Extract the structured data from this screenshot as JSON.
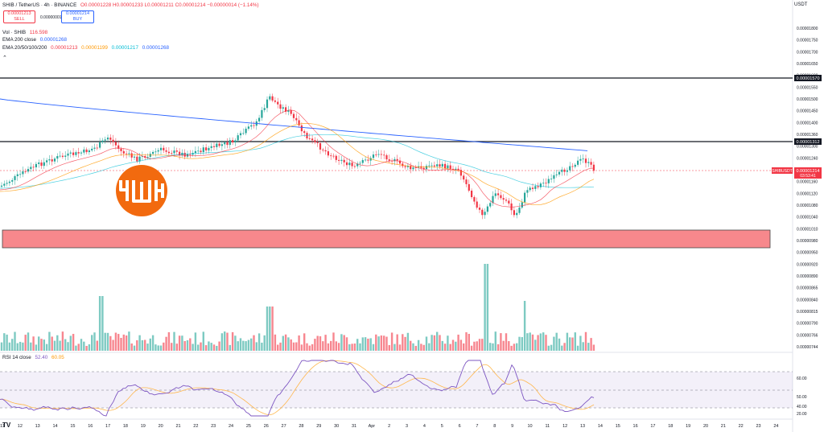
{
  "header": {
    "symbol": "SHIB / TetherUS · 4h · BINANCE",
    "ohlc": "O0.00001228 H0.00001233 L0.00001211 C0.00001214 −0.00000014 (−1.14%)",
    "sell_price": "0.00001213",
    "sell_label": "SELL",
    "spread": "0.00000001",
    "buy_price": "0.00001214",
    "buy_label": "BUY",
    "currency": "USDT"
  },
  "indicators": {
    "vol": {
      "label": "Vol · SHIB",
      "value": "116.598"
    },
    "ema200": {
      "label": "EMA 200 close",
      "value": "0.00001268"
    },
    "ema_multi": {
      "label": "EMA 20/50/100/200",
      "v20": "0.00001213",
      "v50": "0.00001199",
      "v100": "0.00001217",
      "v200": "0.00001268"
    },
    "rsi": {
      "label": "RSI 14 close",
      "value": "52.40",
      "ma": "60.05"
    }
  },
  "price_axis": {
    "ticks": [
      "0.00001800",
      "0.00001750",
      "0.00001700",
      "0.00001650",
      "0.00001600",
      "0.00001550",
      "0.00001500",
      "0.00001450",
      "0.00001400",
      "0.00001360",
      "0.00001300",
      "0.00001240",
      "0.00001200",
      "0.00001160",
      "0.00001120",
      "0.00001080",
      "0.00001040",
      "0.00001010",
      "0.00000980",
      "0.00000950",
      "0.00000920",
      "0.00000890",
      "0.00000865",
      "0.00000840",
      "0.00000815",
      "0.00000790",
      "0.00000766",
      "0.00000744"
    ],
    "level_upper": "0.00001570",
    "level_lower": "0.00001312",
    "current_ticker": "SHIBUSDT",
    "current_price": "0.00001214",
    "countdown": "03:53:41"
  },
  "rsi_axis": {
    "ticks": [
      "60.00",
      "50.00",
      "40.00",
      "20.00"
    ]
  },
  "time_axis": [
    "11",
    "12",
    "13",
    "14",
    "15",
    "16",
    "17",
    "18",
    "19",
    "20",
    "21",
    "22",
    "23",
    "24",
    "25",
    "26",
    "27",
    "28",
    "29",
    "30",
    "31",
    "Apr",
    "2",
    "3",
    "4",
    "5",
    "6",
    "7",
    "8",
    "9",
    "10",
    "11",
    "12",
    "13",
    "14",
    "15",
    "16",
    "17",
    "18",
    "19",
    "20",
    "21",
    "22",
    "23",
    "24"
  ],
  "colors": {
    "up": "#26a69a",
    "down": "#f23645",
    "ema20": "#f23645",
    "ema50": "#ff9800",
    "ema100": "#00bcd4",
    "ema200": "#2962ff",
    "rsi": "#7e57c2",
    "demand_zone": "#f77c80"
  },
  "chart_data": {
    "type": "line",
    "series": [
      {
        "name": "EMA 20/50/100/200",
        "values": [
          1213,
          1199,
          1217,
          1268
        ]
      }
    ],
    "y_scale_multiplier": "0.00000001",
    "price_range": [
      744,
      1800
    ],
    "current_close": 1214,
    "resistance": [
      1570,
      1312
    ],
    "rsi_range": [
      20,
      80
    ],
    "rsi_current": 52.4,
    "rsi_ma_current": 60.05
  }
}
